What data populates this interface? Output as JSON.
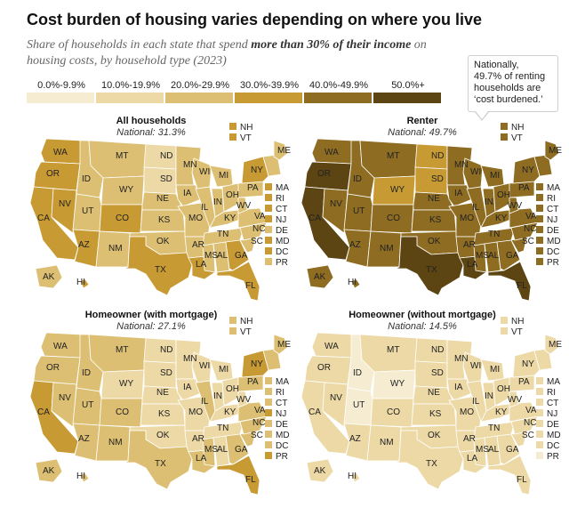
{
  "title": "Cost burden of housing varies depending on where you live",
  "subtitle_part1": "Share of households in each state that spend ",
  "subtitle_bold": "more than 30% of their income",
  "subtitle_part2": " on housing costs, by household type (2023)",
  "legend": [
    {
      "label": "0.0%-9.9%",
      "color": "#f5ecd2"
    },
    {
      "label": "10.0%-19.9%",
      "color": "#ecd9a6"
    },
    {
      "label": "20.0%-29.9%",
      "color": "#dcbf72"
    },
    {
      "label": "30.0%-39.9%",
      "color": "#c89a33"
    },
    {
      "label": "40.0%-49.9%",
      "color": "#8e6d22"
    },
    {
      "label": "50.0%+",
      "color": "#5c4513"
    }
  ],
  "callout": {
    "line1": "Nationally,",
    "line2": "49.7% of renting",
    "line3": "households are",
    "line4": "‘cost burdened.’"
  },
  "panels": [
    {
      "title": "All households",
      "national": "National: 31.3%",
      "bins": {
        "WA": 3,
        "OR": 3,
        "CA": 3,
        "NV": 3,
        "ID": 2,
        "MT": 2,
        "WY": 2,
        "UT": 2,
        "CO": 3,
        "AZ": 3,
        "NM": 2,
        "ND": 1,
        "SD": 1,
        "NE": 2,
        "KS": 2,
        "OK": 2,
        "TX": 3,
        "MN": 2,
        "IA": 2,
        "MO": 2,
        "AR": 2,
        "LA": 3,
        "WI": 2,
        "IL": 2,
        "MI": 2,
        "IN": 2,
        "OH": 2,
        "KY": 2,
        "TN": 2,
        "MS": 2,
        "AL": 2,
        "GA": 3,
        "FL": 3,
        "SC": 2,
        "NC": 2,
        "VA": 2,
        "WV": 2,
        "PA": 2,
        "NY": 3,
        "ME": 2,
        "NEW": 2,
        "AK": 2,
        "HI": 3,
        "NH": 3,
        "VT": 3,
        "MA": 3,
        "RI": 3,
        "CT": 3,
        "NJ": 3,
        "DE": 2,
        "MD": 3,
        "DC": 3,
        "PR": 2
      }
    },
    {
      "title": "Renter",
      "national": "National: 49.7%",
      "bins": {
        "WA": 4,
        "OR": 5,
        "CA": 5,
        "NV": 4,
        "ID": 4,
        "MT": 4,
        "WY": 3,
        "UT": 4,
        "CO": 4,
        "AZ": 4,
        "NM": 4,
        "ND": 3,
        "SD": 3,
        "NE": 4,
        "KS": 4,
        "OK": 4,
        "TX": 5,
        "MN": 4,
        "IA": 4,
        "MO": 4,
        "AR": 4,
        "LA": 5,
        "WI": 4,
        "IL": 4,
        "MI": 4,
        "IN": 4,
        "OH": 4,
        "KY": 4,
        "TN": 4,
        "MS": 4,
        "AL": 4,
        "GA": 4,
        "FL": 5,
        "SC": 4,
        "NC": 4,
        "VA": 4,
        "WV": 4,
        "PA": 4,
        "NY": 4,
        "ME": 4,
        "NEW": 4,
        "AK": 4,
        "HI": 4,
        "NH": 4,
        "VT": 4,
        "MA": 4,
        "RI": 4,
        "CT": 4,
        "NJ": 4,
        "DE": 4,
        "MD": 4,
        "DC": 4,
        "PR": 4
      }
    },
    {
      "title": "Homeowner (with mortgage)",
      "national": "National: 27.1%",
      "bins": {
        "WA": 2,
        "OR": 2,
        "CA": 3,
        "NV": 2,
        "ID": 2,
        "MT": 2,
        "WY": 1,
        "UT": 2,
        "CO": 2,
        "AZ": 2,
        "NM": 2,
        "ND": 1,
        "SD": 1,
        "NE": 1,
        "KS": 1,
        "OK": 1,
        "TX": 2,
        "MN": 1,
        "IA": 1,
        "MO": 1,
        "AR": 1,
        "LA": 2,
        "WI": 1,
        "IL": 2,
        "MI": 1,
        "IN": 1,
        "OH": 1,
        "KY": 1,
        "TN": 1,
        "MS": 2,
        "AL": 1,
        "GA": 2,
        "FL": 3,
        "SC": 2,
        "NC": 2,
        "VA": 2,
        "WV": 1,
        "PA": 2,
        "NY": 3,
        "ME": 2,
        "NEW": 2,
        "AK": 2,
        "HI": 2,
        "NH": 2,
        "VT": 2,
        "MA": 2,
        "RI": 2,
        "CT": 2,
        "NJ": 3,
        "DE": 2,
        "MD": 2,
        "DC": 2,
        "PR": 3
      }
    },
    {
      "title": "Homeowner (without mortgage)",
      "national": "National: 14.5%",
      "bins": {
        "WA": 1,
        "OR": 1,
        "CA": 1,
        "NV": 1,
        "ID": 0,
        "MT": 1,
        "WY": 0,
        "UT": 0,
        "CO": 1,
        "AZ": 1,
        "NM": 1,
        "ND": 1,
        "SD": 1,
        "NE": 1,
        "KS": 1,
        "OK": 1,
        "TX": 1,
        "MN": 1,
        "IA": 1,
        "MO": 1,
        "AR": 1,
        "LA": 1,
        "WI": 1,
        "IL": 1,
        "MI": 1,
        "IN": 1,
        "OH": 1,
        "KY": 1,
        "TN": 1,
        "MS": 1,
        "AL": 1,
        "GA": 1,
        "FL": 1,
        "SC": 1,
        "NC": 1,
        "VA": 1,
        "WV": 1,
        "PA": 1,
        "NY": 1,
        "ME": 1,
        "NEW": 1,
        "AK": 1,
        "HI": 1,
        "NH": 1,
        "VT": 1,
        "MA": 1,
        "RI": 1,
        "CT": 1,
        "NJ": 1,
        "DE": 1,
        "MD": 1,
        "DC": 1,
        "PR": 0
      }
    }
  ],
  "state_labels": [
    "WA",
    "OR",
    "CA",
    "NV",
    "ID",
    "MT",
    "WY",
    "UT",
    "CO",
    "AZ",
    "NM",
    "ND",
    "SD",
    "NE",
    "KS",
    "OK",
    "TX",
    "MN",
    "IA",
    "MO",
    "AR",
    "LA",
    "WI",
    "IL",
    "MI",
    "IN",
    "OH",
    "KY",
    "TN",
    "MS",
    "AL",
    "GA",
    "FL",
    "SC",
    "NC",
    "VA",
    "WV",
    "PA",
    "NY",
    "ME",
    "AK",
    "HI"
  ],
  "side_top": [
    "NH",
    "VT"
  ],
  "side_right": [
    "MA",
    "RI",
    "CT",
    "NJ",
    "DE",
    "MD",
    "DC",
    "PR"
  ]
}
